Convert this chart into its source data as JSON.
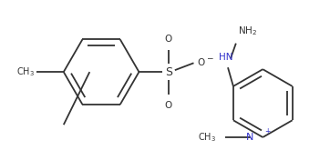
{
  "bg_color": "#ffffff",
  "line_color": "#333333",
  "N_color": "#3333cc",
  "O_color": "#333333",
  "lw": 1.3,
  "figsize": [
    3.62,
    1.76
  ],
  "dpi": 100,
  "xlim": [
    0,
    3.62
  ],
  "ylim": [
    0,
    1.76
  ],
  "fs": 7.5
}
